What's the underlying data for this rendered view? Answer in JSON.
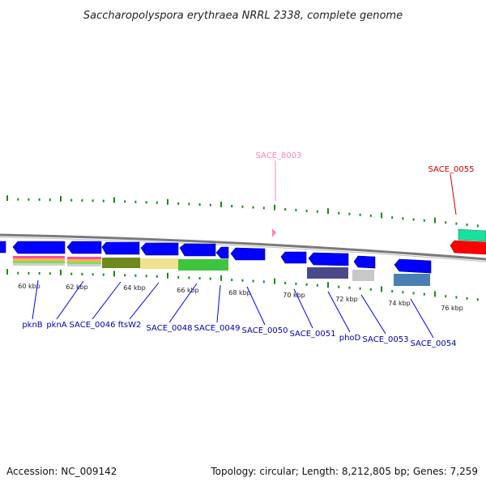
{
  "title": "Saccharopolyspora erythraea NRRL 2338, complete genome",
  "footer": {
    "accession": "Accession: NC_009142",
    "summary": "Topology: circular; Length: 8,212,805 bp; Genes: 7,259"
  },
  "colors": {
    "forward_gene": "#0000ff",
    "reverse_gene": "#1010e0",
    "backbone": "#808080",
    "tick": "#1a8a1a",
    "label_line": "#0000ff",
    "label_text": "#0000aa",
    "pink_label": "#ff80c0",
    "red_label": "#cc0000"
  },
  "scale": {
    "unit": "kbp",
    "ticks": [
      {
        "kbp": 60,
        "label": "60 kbp"
      },
      {
        "kbp": 62,
        "label": "62 kbp"
      },
      {
        "kbp": 64,
        "label": "64 kbp"
      },
      {
        "kbp": 66,
        "label": "66 kbp"
      },
      {
        "kbp": 68,
        "label": "68 kbp"
      },
      {
        "kbp": 70,
        "label": "70 kbp"
      },
      {
        "kbp": 72,
        "label": "72 kbp"
      },
      {
        "kbp": 74,
        "label": "74 kbp"
      },
      {
        "kbp": 76,
        "label": "76 kbp"
      }
    ]
  },
  "gene_labels": [
    {
      "id": "pknB",
      "text": "pknB"
    },
    {
      "id": "pknA",
      "text": "pknA"
    },
    {
      "id": "SACE_0046",
      "text": "SACE_0046"
    },
    {
      "id": "ftsW2",
      "text": "ftsW2"
    },
    {
      "id": "SACE_0048",
      "text": "SACE_0048"
    },
    {
      "id": "SACE_0049",
      "text": "SACE_0049"
    },
    {
      "id": "SACE_0050",
      "text": "SACE_0050"
    },
    {
      "id": "SACE_0051",
      "text": "SACE_0051"
    },
    {
      "id": "phoD",
      "text": "phoD"
    },
    {
      "id": "SACE_0053",
      "text": "SACE_0053"
    },
    {
      "id": "SACE_0054",
      "text": "SACE_0054"
    }
  ],
  "top_labels": [
    {
      "id": "SACE_8003",
      "text": "SACE_8003"
    },
    {
      "id": "SACE_0055",
      "text": "SACE_0055"
    }
  ]
}
